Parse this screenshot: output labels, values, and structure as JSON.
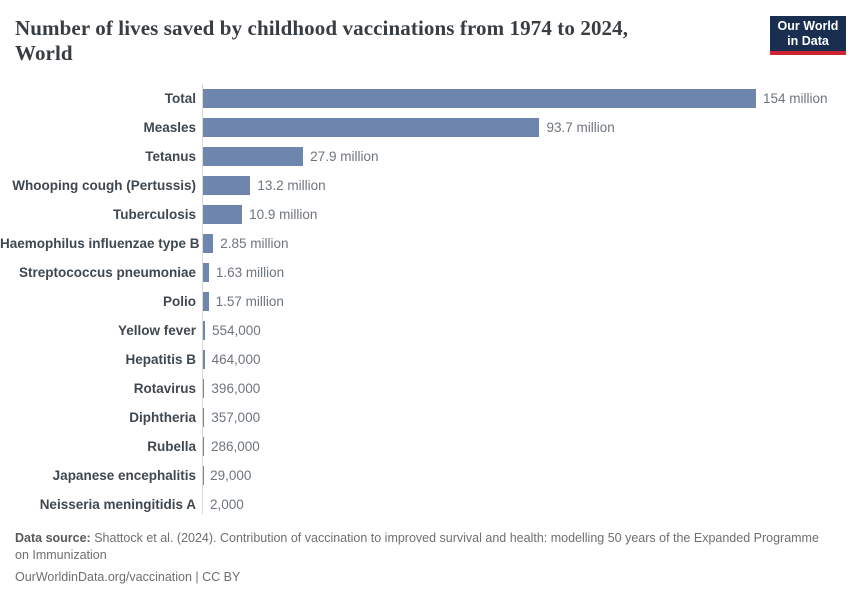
{
  "header": {
    "title_line1": "Number of lives saved by childhood vaccinations from 1974 to 2024,",
    "title_line2": "World",
    "logo": {
      "line1": "Our World",
      "line2": "in Data"
    }
  },
  "chart_data": {
    "type": "bar",
    "orientation": "horizontal",
    "title": "Number of lives saved by childhood vaccinations from 1974 to 2024, World",
    "categories": [
      "Total",
      "Measles",
      "Tetanus",
      "Whooping cough (Pertussis)",
      "Tuberculosis",
      "Haemophilus influenzae type B",
      "Streptococcus pneumoniae",
      "Polio",
      "Yellow fever",
      "Hepatitis B",
      "Rotavirus",
      "Diphtheria",
      "Rubella",
      "Japanese encephalitis",
      "Neisseria meningitidis A"
    ],
    "values_lives_saved": [
      154000000,
      93700000,
      27900000,
      13200000,
      10900000,
      2850000,
      1630000,
      1570000,
      554000,
      464000,
      396000,
      357000,
      286000,
      29000,
      2000
    ],
    "value_labels": [
      "154 million",
      "93.7 million",
      "27.9 million",
      "13.2 million",
      "10.9 million",
      "2.85 million",
      "1.63 million",
      "1.57 million",
      "554,000",
      "464,000",
      "396,000",
      "357,000",
      "286,000",
      "29,000",
      "2,000"
    ],
    "xlim": [
      0,
      154000000
    ],
    "grid": "none",
    "legend": "none",
    "bar_color": "#6e86ad"
  },
  "colors": {
    "bar": "#6e86ad",
    "axis_line": "#d9d9d9",
    "logo_background": "#1a2e4f",
    "logo_accent_red": "#cf2430",
    "title_text": "#383d42",
    "category_label": "#3f4850",
    "value_label": "#6e757d"
  },
  "footer": {
    "source_label": "Data source:",
    "source_text": "Shattock et al. (2024). Contribution of vaccination to improved survival and health: modelling 50 years of the Expanded Programme on Immunization",
    "link_line": "OurWorldinData.org/vaccination | CC BY"
  }
}
